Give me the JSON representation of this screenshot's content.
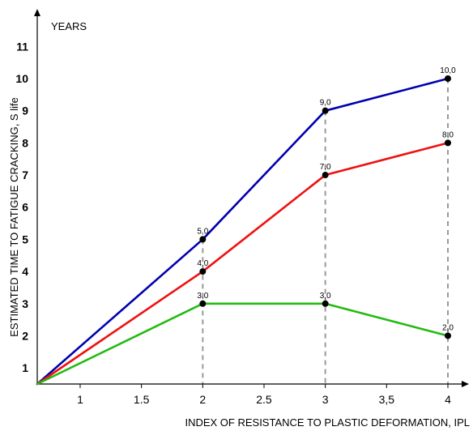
{
  "chart_data": {
    "type": "line",
    "xlabel": "INDEX OF RESISTANCE TO PLASTIC DEFORMATION, IPL",
    "ylabel": "ESTIMATED TIME TO FATIGUE CRACKING, S life",
    "y_unit_label": "YEARS",
    "xlim": [
      0.65,
      4.2
    ],
    "ylim": [
      0.5,
      11.8
    ],
    "x_ticks": [
      {
        "value": 1,
        "label": "1"
      },
      {
        "value": 1.5,
        "label": "1.5"
      },
      {
        "value": 2,
        "label": "2"
      },
      {
        "value": 2.5,
        "label": "2.5"
      },
      {
        "value": 3,
        "label": "3"
      },
      {
        "value": 3.5,
        "label": "3,5"
      },
      {
        "value": 4,
        "label": "4"
      }
    ],
    "y_ticks": [
      {
        "value": 1,
        "label": "1"
      },
      {
        "value": 2,
        "label": "2"
      },
      {
        "value": 3,
        "label": "3"
      },
      {
        "value": 4,
        "label": "4"
      },
      {
        "value": 5,
        "label": "5"
      },
      {
        "value": 6,
        "label": "6"
      },
      {
        "value": 7,
        "label": "7"
      },
      {
        "value": 8,
        "label": "8"
      },
      {
        "value": 9,
        "label": "9"
      },
      {
        "value": 10,
        "label": "10"
      },
      {
        "value": 11,
        "label": "11"
      }
    ],
    "drop_lines_x": [
      2,
      3,
      4
    ],
    "origin": {
      "x": 0.65,
      "y": 0.5
    },
    "series": [
      {
        "color": "#0000b0",
        "points": [
          {
            "x": 2,
            "y": 5.0,
            "label": "5,0"
          },
          {
            "x": 3,
            "y": 9.0,
            "label": "9,0"
          },
          {
            "x": 4,
            "y": 10.0,
            "label": "10,0"
          }
        ]
      },
      {
        "color": "#ee1111",
        "points": [
          {
            "x": 2,
            "y": 4.0,
            "label": "4,0"
          },
          {
            "x": 3,
            "y": 7.0,
            "label": "7,0"
          },
          {
            "x": 4,
            "y": 8.0,
            "label": "8,0"
          }
        ]
      },
      {
        "color": "#22bb11",
        "points": [
          {
            "x": 2,
            "y": 3.0,
            "label": "3,0"
          },
          {
            "x": 3,
            "y": 3.0,
            "label": "3,0"
          },
          {
            "x": 4,
            "y": 2.0,
            "label": "2,0"
          }
        ]
      }
    ]
  }
}
